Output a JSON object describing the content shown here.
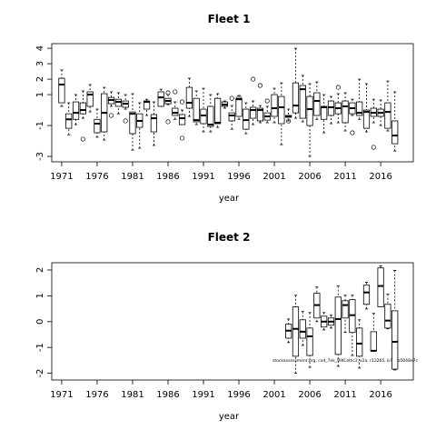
{
  "chart_data": [
    {
      "type": "box",
      "title": "Fleet 1",
      "x_label": "year",
      "xlim": [
        1969.6,
        2020.6
      ],
      "xticks": [
        1971,
        1976,
        1981,
        1986,
        1991,
        1996,
        2001,
        2006,
        2011,
        2016
      ],
      "ylim": [
        -3.35,
        4.3
      ],
      "yticks": [
        -3,
        -1,
        1,
        2,
        3,
        4
      ],
      "x": [
        1971,
        1972,
        1973,
        1974,
        1975,
        1976,
        1977,
        1978,
        1979,
        1980,
        1981,
        1982,
        1983,
        1984,
        1985,
        1986,
        1987,
        1988,
        1989,
        1990,
        1991,
        1992,
        1993,
        1994,
        1995,
        1996,
        1997,
        1998,
        1999,
        2000,
        2001,
        2002,
        2003,
        2004,
        2005,
        2006,
        2007,
        2008,
        2009,
        2010,
        2011,
        2012,
        2013,
        2014,
        2015,
        2016,
        2017,
        2018
      ],
      "whisker_low": [
        0.24,
        -1.6,
        -0.94,
        -0.53,
        -0.12,
        -1.76,
        -1.94,
        0.24,
        -0.24,
        0.06,
        -2.59,
        -2.47,
        -0.35,
        -2.29,
        0.24,
        0.35,
        -0.6,
        -0.94,
        -0.41,
        -0.94,
        -1.41,
        -1.41,
        -1.12,
        0.12,
        -1.24,
        -0.6,
        -1.53,
        -0.94,
        -0.82,
        -0.82,
        -0.82,
        -2.24,
        -0.7,
        -0.53,
        -0.76,
        -3.0,
        -0.6,
        -1.47,
        -0.88,
        -0.82,
        -1.35,
        -0.35,
        -0.6,
        -1.41,
        -0.82,
        -1.0,
        -1.35,
        -2.65
      ],
      "q1": [
        0.47,
        -1.18,
        -0.6,
        -0.24,
        0.24,
        -1.47,
        -1.41,
        0.41,
        0.24,
        0.18,
        -1.53,
        -1.12,
        0.06,
        -1.41,
        0.24,
        0.41,
        -0.35,
        -0.94,
        0.12,
        -0.76,
        -0.88,
        -1.06,
        -0.88,
        0.24,
        -0.7,
        -0.41,
        -1.24,
        -0.53,
        -0.7,
        -0.65,
        -0.41,
        -0.88,
        -0.47,
        -0.18,
        -0.53,
        -1.0,
        -0.35,
        -0.6,
        -0.35,
        -0.24,
        -0.82,
        -0.24,
        -0.35,
        -1.18,
        -0.41,
        -0.41,
        -1.18,
        -2.18
      ],
      "median": [
        1.65,
        -0.6,
        -0.18,
        0,
        1.0,
        -0.88,
        -0.18,
        0.65,
        0.53,
        0.41,
        -0.24,
        -0.7,
        0.53,
        -0.53,
        0.82,
        0.59,
        -0.18,
        -0.53,
        0.47,
        -0.65,
        -0.35,
        -0.94,
        -0.82,
        0.35,
        -0.35,
        0.7,
        -0.65,
        0,
        0,
        -0.41,
        0.12,
        0.18,
        -0.41,
        0.29,
        1.35,
        0.06,
        0.59,
        0.18,
        0.18,
        0.12,
        0.24,
        0.12,
        -0.18,
        -0.12,
        -0.18,
        -0.18,
        -0.12,
        -1.65
      ],
      "q3": [
        2.06,
        -0.24,
        0.53,
        0.47,
        1.18,
        -0.6,
        1.06,
        0.82,
        0.7,
        0.59,
        -0.12,
        -0.24,
        0.59,
        -0.29,
        1.18,
        0.76,
        0.12,
        -0.29,
        1.47,
        0.76,
        0.06,
        0.24,
        0.76,
        0.53,
        -0.18,
        0.76,
        0.06,
        0.18,
        0.12,
        -0.18,
        1.0,
        0.88,
        -0.35,
        1.76,
        1.59,
        0.88,
        1.12,
        0.24,
        0.59,
        0.47,
        0.59,
        0.47,
        0.53,
        0,
        0.12,
        0.06,
        0.47,
        -0.7
      ],
      "whisker_high": [
        2.6,
        0.47,
        1.0,
        1.24,
        1.65,
        0.06,
        1.47,
        1.18,
        1.12,
        1.0,
        1.06,
        0.47,
        0.7,
        0.53,
        1.35,
        1.0,
        0.53,
        0,
        2.06,
        1.24,
        1.41,
        1.0,
        1.06,
        0.59,
        0.29,
        0.94,
        0.47,
        0.59,
        0.29,
        0.24,
        1.41,
        1.76,
        0.06,
        4.0,
        2.24,
        1.71,
        1.82,
        1.0,
        0.88,
        1.06,
        1.12,
        0.7,
        2.0,
        1.71,
        0.7,
        0.65,
        1.88,
        1.18
      ],
      "outliers": [
        {
          "x": 1974,
          "y": -1.88
        },
        {
          "x": 1978,
          "y": -0.35
        },
        {
          "x": 1980,
          "y": -0.7
        },
        {
          "x": 1986,
          "y": 1.12
        },
        {
          "x": 1986,
          "y": -0.76
        },
        {
          "x": 1987,
          "y": 1.18
        },
        {
          "x": 1988,
          "y": -1.82
        },
        {
          "x": 1988,
          "y": 0.53
        },
        {
          "x": 1995,
          "y": 0.76
        },
        {
          "x": 1996,
          "y": 0.82
        },
        {
          "x": 1998,
          "y": 2.0
        },
        {
          "x": 1999,
          "y": 1.59
        },
        {
          "x": 2000,
          "y": 0.59
        },
        {
          "x": 2003,
          "y": -0.71
        },
        {
          "x": 2010,
          "y": 1.47
        },
        {
          "x": 2012,
          "y": -1.47
        },
        {
          "x": 2015,
          "y": -2.41
        }
      ]
    },
    {
      "type": "box",
      "title": "Fleet 2",
      "x_label": "year",
      "annotation": "stockassessment.org, cod_7ek_WKCeltic2_v2a, r12265, b7bbb5048e7c",
      "xlim": [
        1969.6,
        2020.6
      ],
      "xticks": [
        1971,
        1976,
        1981,
        1986,
        1991,
        1996,
        2001,
        2006,
        2011,
        2016
      ],
      "ylim": [
        -2.26,
        2.28
      ],
      "yticks": [
        -2,
        -1,
        0,
        1,
        2
      ],
      "x": [
        2003,
        2004,
        2005,
        2006,
        2007,
        2008,
        2009,
        2010,
        2011,
        2012,
        2013,
        2014,
        2015,
        2016,
        2017,
        2018
      ],
      "whisker_low": [
        -0.81,
        -2.0,
        -0.92,
        -1.77,
        0,
        -0.32,
        -0.25,
        -1.73,
        -0.42,
        -1.31,
        -1.8,
        0.49,
        -1.13,
        0.57,
        -0.28,
        -1.87
      ],
      "q1": [
        -0.64,
        -1.34,
        -0.64,
        -1.31,
        0.14,
        -0.21,
        -0.14,
        -1.27,
        0.14,
        -0.42,
        -1.34,
        0.67,
        -1.13,
        0.57,
        -0.25,
        -1.84
      ],
      "median": [
        -0.35,
        -0.28,
        -0.39,
        -0.57,
        0.64,
        0,
        0,
        0.1,
        0.64,
        0.25,
        -0.85,
        1.13,
        -1.13,
        1.38,
        0.04,
        -0.78
      ],
      "q3": [
        -0.1,
        0.57,
        0.07,
        -0.25,
        1.1,
        0.21,
        0.14,
        0.95,
        0.81,
        0.85,
        -0.25,
        1.41,
        -0.39,
        2.08,
        0.67,
        0.42
      ],
      "whisker_high": [
        0.1,
        1.02,
        0.39,
        0.35,
        1.34,
        0.35,
        0.25,
        1.38,
        1.02,
        1.02,
        0.07,
        1.52,
        0.32,
        2.16,
        1.06,
        1.98
      ],
      "outliers": []
    }
  ]
}
